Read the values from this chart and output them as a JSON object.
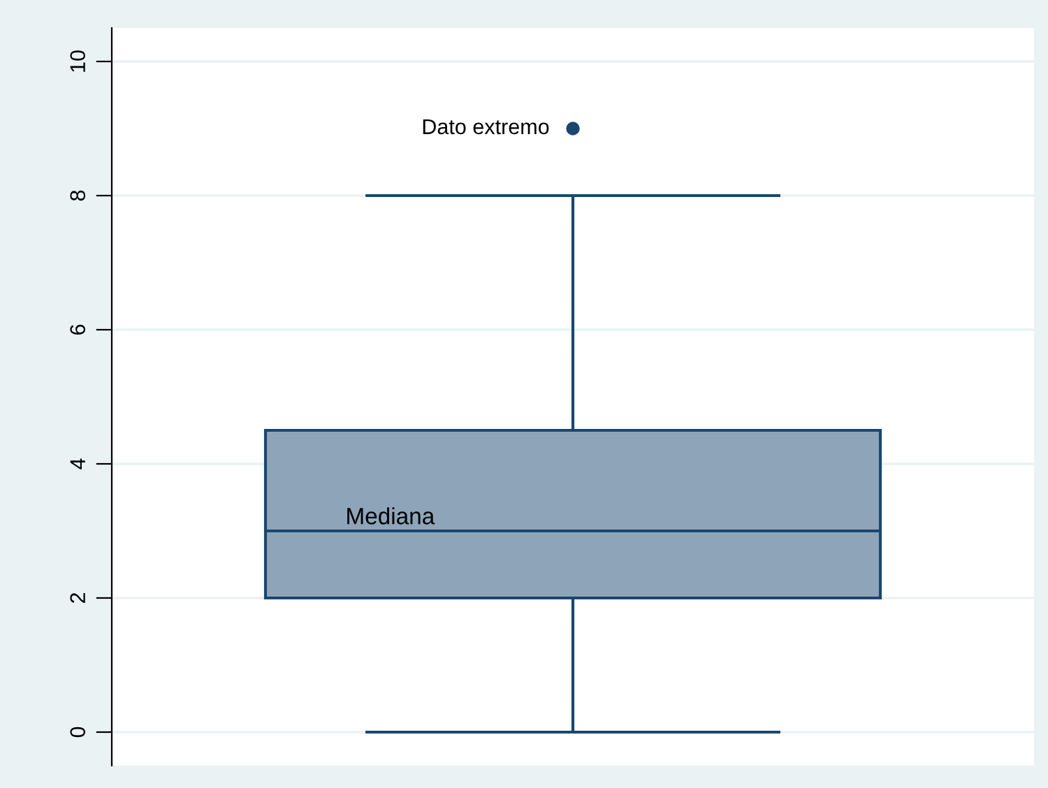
{
  "chart_data": {
    "type": "box",
    "categories": [
      null
    ],
    "boxes": [
      {
        "low": 0,
        "q1": 2,
        "median": 3,
        "q3": 4.5,
        "high": 8,
        "outliers": [
          9
        ]
      }
    ],
    "color": "#8ea5b9",
    "ylim": [
      -0.5,
      10.5
    ],
    "yticks": [
      0,
      2,
      4,
      6,
      8,
      10
    ],
    "grid": "y",
    "tick_labels": "y",
    "annotations": [
      "Dato extremo",
      "Mediana"
    ]
  }
}
